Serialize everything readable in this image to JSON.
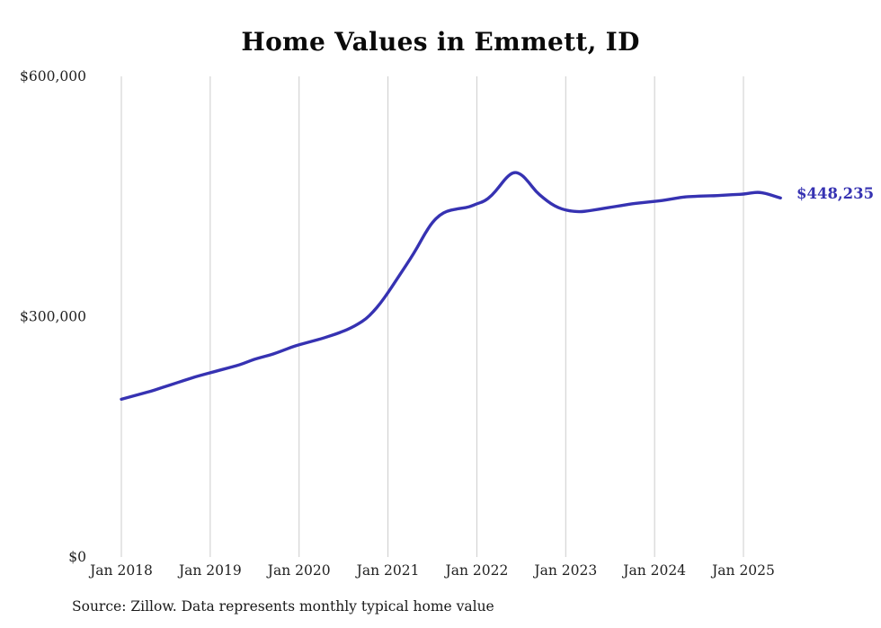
{
  "page": {
    "title": "Home Values in Emmett, ID",
    "source_note": "Source: Zillow. Data represents monthly typical home value"
  },
  "colors": {
    "line": "#3632b2",
    "gridline": "#cccccc",
    "axis_text": "#222222"
  },
  "chart_data": {
    "type": "line",
    "title": "Home Values in Emmett, ID",
    "unit": "USD",
    "x_start_month": "2018-01",
    "x_end_month": "2025-06",
    "x_tick_labels": [
      "Jan 2018",
      "Jan 2019",
      "Jan 2020",
      "Jan 2021",
      "Jan 2022",
      "Jan 2023",
      "Jan 2024",
      "Jan 2025"
    ],
    "y_ticks": [
      {
        "value": 0,
        "label": "$0"
      },
      {
        "value": 300000,
        "label": "$300,000"
      },
      {
        "value": 600000,
        "label": "$600,000"
      }
    ],
    "ylim": [
      0,
      600000
    ],
    "grid": "vertical-yearly",
    "legend": "none",
    "last_value_label": "$448,235",
    "series": [
      {
        "name": "Typical home value",
        "monthly_values": [
          197000,
          199500,
          202000,
          204500,
          207000,
          210000,
          213000,
          216000,
          219000,
          222000,
          225000,
          227500,
          230000,
          232500,
          235000,
          237500,
          240000,
          243500,
          247000,
          249500,
          252000,
          255000,
          258500,
          262000,
          265000,
          267500,
          270000,
          272500,
          275500,
          278500,
          282000,
          286000,
          291000,
          297000,
          306000,
          317000,
          330000,
          344000,
          358000,
          372000,
          387000,
          404000,
          418000,
          427000,
          432000,
          434000,
          435500,
          437000,
          441000,
          444000,
          451000,
          462000,
          474000,
          481000,
          478000,
          468000,
          456000,
          448000,
          441000,
          436000,
          433000,
          431500,
          431000,
          432000,
          433500,
          435000,
          436500,
          438000,
          439500,
          441000,
          442000,
          443000,
          444000,
          445000,
          446500,
          448000,
          449500,
          450000,
          450500,
          450800,
          451000,
          451500,
          452000,
          452500,
          453000,
          454500,
          455500,
          454000,
          451000,
          448235
        ]
      }
    ]
  }
}
